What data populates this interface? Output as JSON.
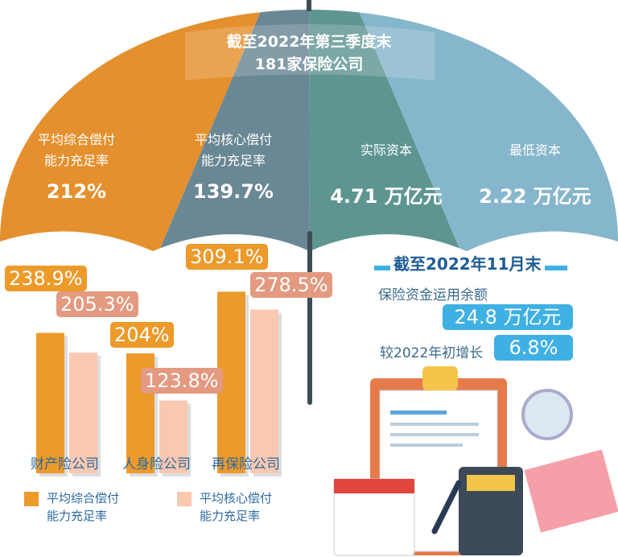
{
  "umbrella": {
    "title_line1": "截至2022年第三季度末",
    "title_line2": "181家保险公司",
    "metrics": [
      {
        "label": "平均综合偿付\n能力充足率",
        "value": "212%",
        "color": "#e4902e"
      },
      {
        "label": "平均核心偿付\n能力充足率",
        "value": "139.7%",
        "color": "#6a8795"
      },
      {
        "label": "实际资本",
        "value": "4.71 万亿元",
        "color": "#5e9590"
      },
      {
        "label": "最低资本",
        "value": "2.22 万亿元",
        "color": "#86b6cc"
      }
    ]
  },
  "chart_data": {
    "type": "bar",
    "categories": [
      "财产险公司",
      "人身险公司",
      "再保险公司"
    ],
    "series": [
      {
        "name": "平均综合偿付能力充足率",
        "values": [
          238.9,
          204,
          309.1
        ],
        "labels": [
          "238.9%",
          "204%",
          "309.1%"
        ],
        "color": "#ec9a2a"
      },
      {
        "name": "平均核心偿付能力充足率",
        "values": [
          205.3,
          123.8,
          278.5
        ],
        "labels": [
          "205.3%",
          "123.8%",
          "278.5%"
        ],
        "color": "#f9c8b0"
      }
    ],
    "unit": "%",
    "legend_position": "bottom"
  },
  "legend": {
    "item1": [
      "平均综合偿付",
      "能力充足率"
    ],
    "item2": [
      "平均核心偿付",
      "能力充足率"
    ]
  },
  "right_panel": {
    "heading": "截至2022年11月末",
    "label1": "保险资金运用余额",
    "value1": "24.8 万亿元",
    "label2": "较2022年初增长",
    "value2": "6.8%",
    "accent": "#3fb0e3"
  }
}
